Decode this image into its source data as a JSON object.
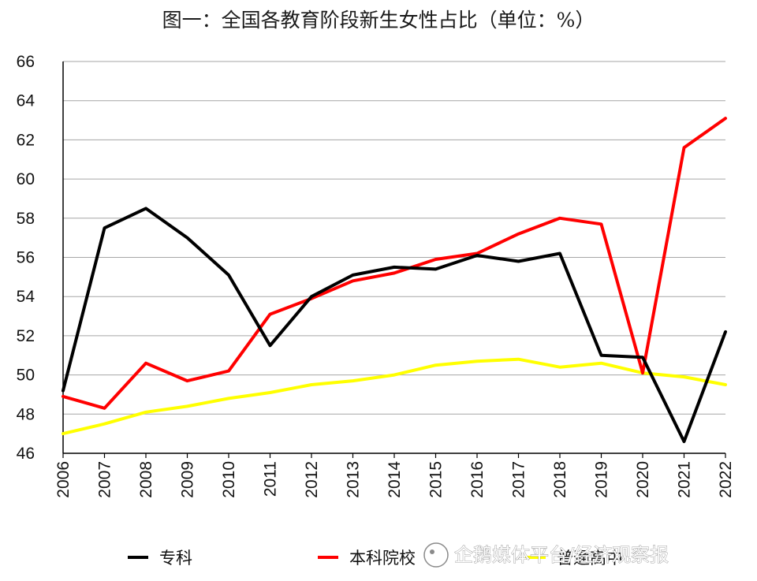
{
  "chart_data": {
    "type": "line",
    "title": "图一：全国各教育阶段新生女性占比（单位：%）",
    "xlabel": "",
    "ylabel": "",
    "categories": [
      "2006",
      "2007",
      "2008",
      "2009",
      "2010",
      "2011",
      "2012",
      "2013",
      "2014",
      "2015",
      "2016",
      "2017",
      "2018",
      "2019",
      "2020",
      "2021",
      "2022"
    ],
    "ylim": [
      46,
      66
    ],
    "yticks": [
      46,
      48,
      50,
      52,
      54,
      56,
      58,
      60,
      62,
      64,
      66
    ],
    "grid": "horizontal",
    "legend_position": "bottom",
    "series": [
      {
        "name": "专科",
        "color": "#000000",
        "values": [
          49.2,
          57.5,
          58.5,
          57.0,
          55.1,
          51.5,
          54.0,
          55.1,
          55.5,
          55.4,
          56.1,
          55.8,
          56.2,
          51.0,
          50.9,
          46.6,
          52.2
        ]
      },
      {
        "name": "本科院校",
        "color": "#ff0000",
        "values": [
          48.9,
          48.3,
          50.6,
          49.7,
          50.2,
          53.1,
          53.9,
          54.8,
          55.2,
          55.9,
          56.2,
          57.2,
          58.0,
          57.7,
          50.1,
          61.6,
          63.1
        ]
      },
      {
        "name": "普通高中",
        "color": "#ffff00",
        "values": [
          47.0,
          47.5,
          48.1,
          48.4,
          48.8,
          49.1,
          49.5,
          49.7,
          50.0,
          50.5,
          50.7,
          50.8,
          50.4,
          50.6,
          50.1,
          49.9,
          49.5
        ]
      }
    ]
  },
  "watermark": {
    "text": "企鹅媒体平台/经济观察报"
  }
}
